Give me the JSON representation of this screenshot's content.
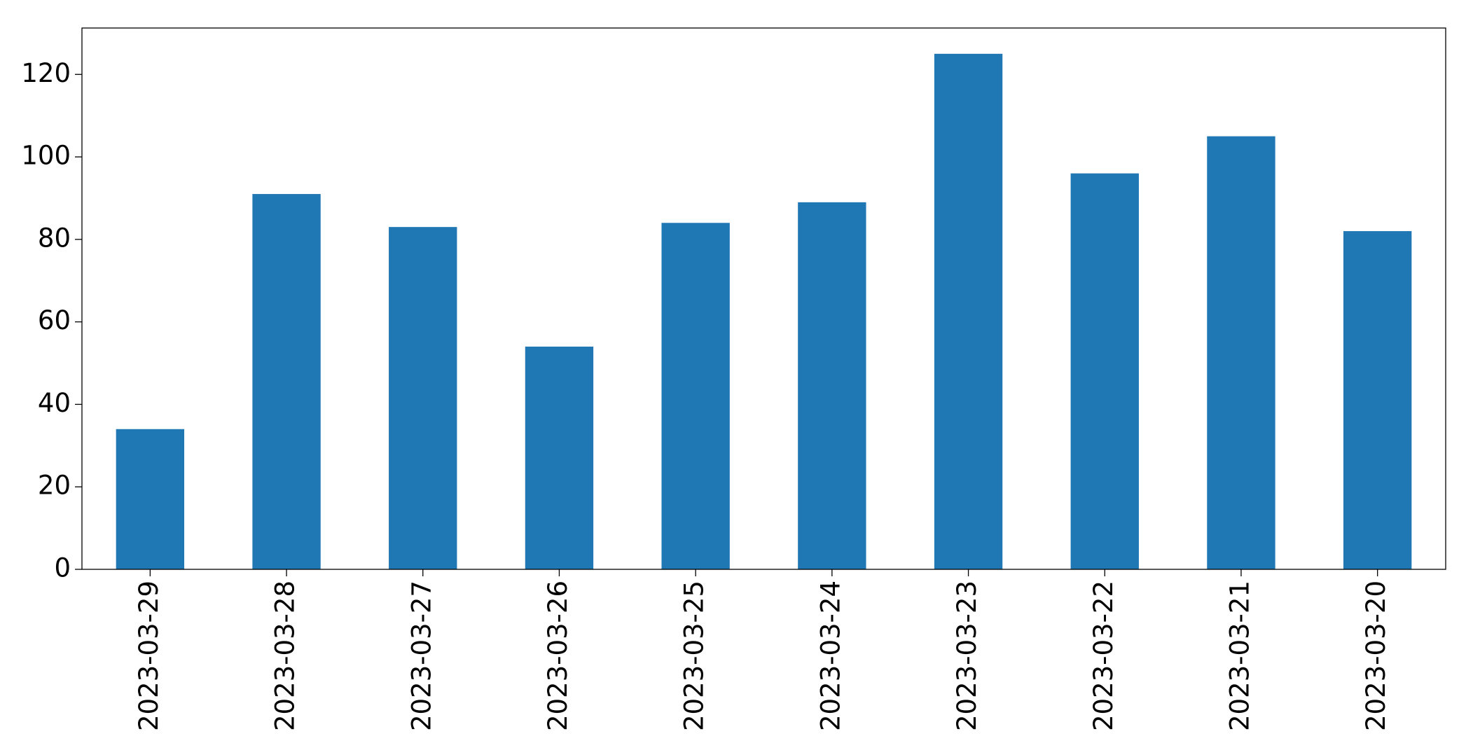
{
  "chart_data": {
    "type": "bar",
    "categories": [
      "2023-03-29",
      "2023-03-28",
      "2023-03-27",
      "2023-03-26",
      "2023-03-25",
      "2023-03-24",
      "2023-03-23",
      "2023-03-22",
      "2023-03-21",
      "2023-03-20"
    ],
    "values": [
      34,
      91,
      83,
      54,
      84,
      89,
      125,
      96,
      105,
      82
    ],
    "color": "#1f77b4",
    "ylim": [
      0,
      131.25
    ],
    "yticks": [
      0,
      20,
      40,
      60,
      80,
      100,
      120
    ],
    "grid": false
  }
}
